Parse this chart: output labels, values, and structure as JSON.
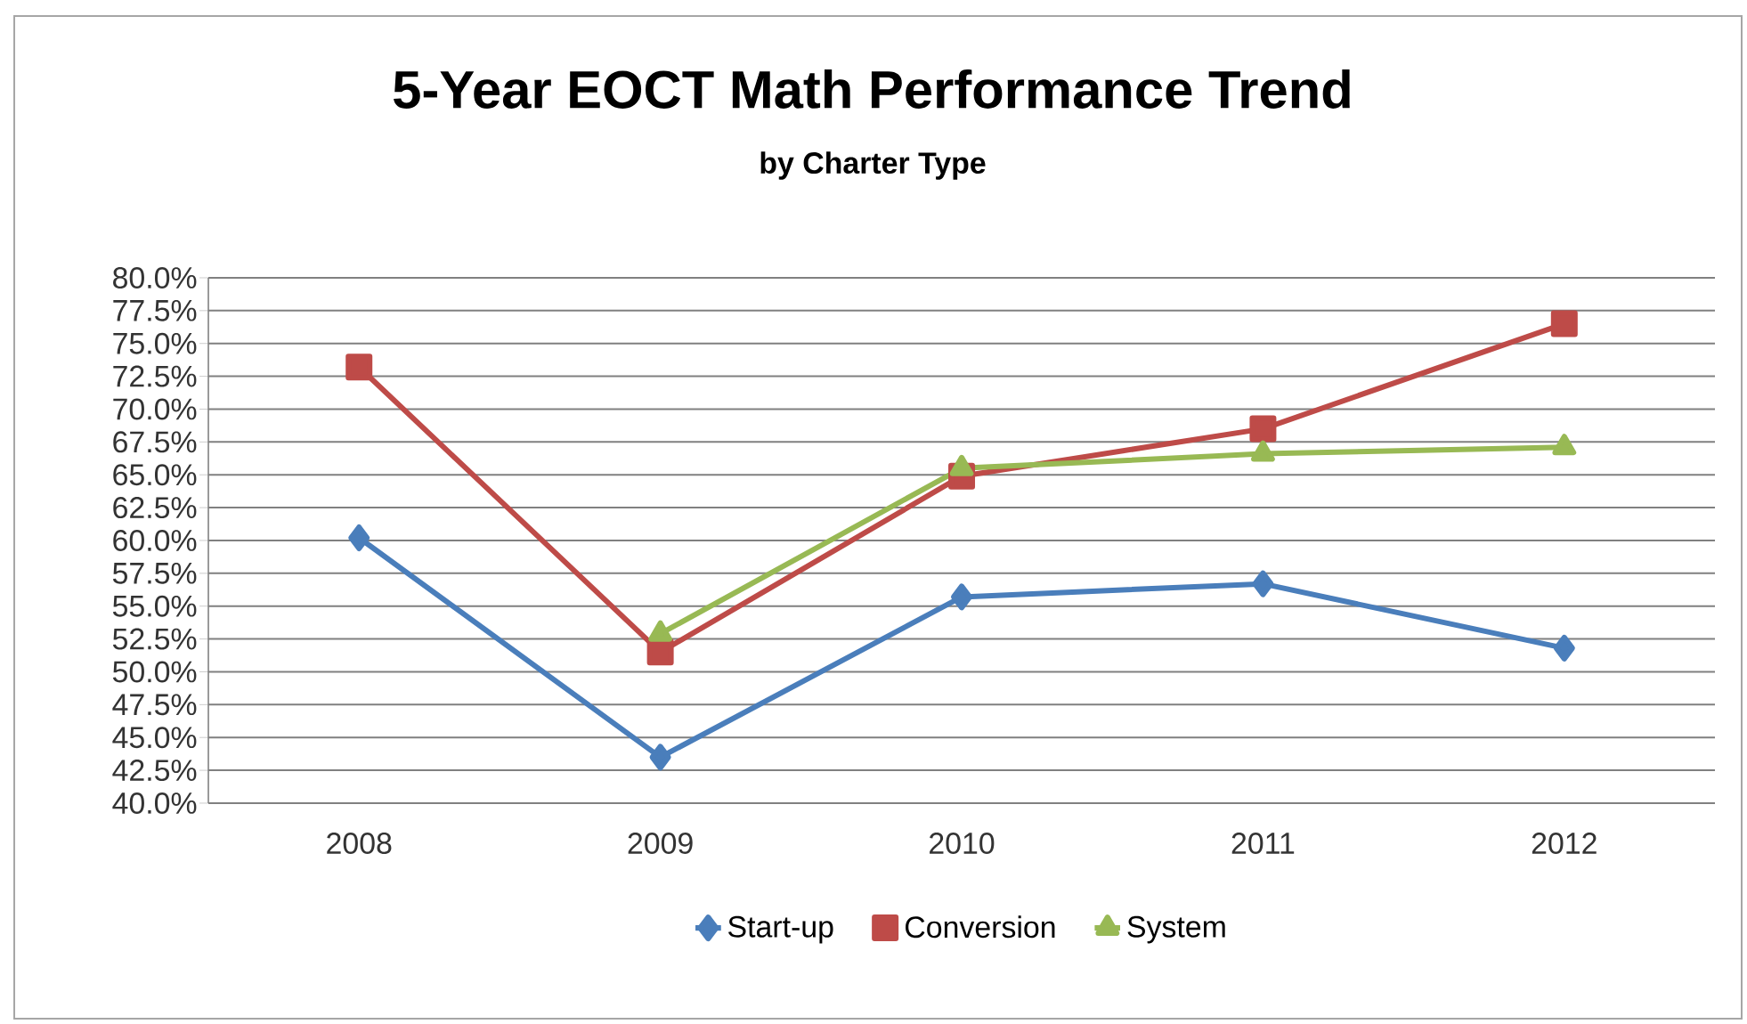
{
  "chart_data": {
    "type": "line",
    "title": "5-Year EOCT Math Performance Trend",
    "subtitle": "by Charter Type",
    "categories": [
      "2008",
      "2009",
      "2010",
      "2011",
      "2012"
    ],
    "series": [
      {
        "name": "Start-up",
        "color": "#4a7ebb",
        "marker": "diamond",
        "values": [
          60.2,
          43.5,
          55.7,
          56.7,
          51.8
        ]
      },
      {
        "name": "Conversion",
        "color": "#be4b48",
        "marker": "square",
        "values": [
          73.2,
          51.5,
          64.9,
          68.5,
          76.5
        ]
      },
      {
        "name": "System",
        "color": "#98b954",
        "marker": "triangle",
        "values": [
          null,
          52.9,
          65.5,
          66.6,
          67.1
        ]
      }
    ],
    "ylim": [
      40,
      80
    ],
    "yticks": [
      {
        "value": 40,
        "label": "40.0%"
      },
      {
        "value": 42.5,
        "label": "42.5%"
      },
      {
        "value": 45,
        "label": "45.0%"
      },
      {
        "value": 47.5,
        "label": "47.5%"
      },
      {
        "value": 50,
        "label": "50.0%"
      },
      {
        "value": 52.5,
        "label": "52.5%"
      },
      {
        "value": 55,
        "label": "55.0%"
      },
      {
        "value": 57.5,
        "label": "57.5%"
      },
      {
        "value": 60,
        "label": "60.0%"
      },
      {
        "value": 62.5,
        "label": "62.5%"
      },
      {
        "value": 65,
        "label": "65.0%"
      },
      {
        "value": 67.5,
        "label": "67.5%"
      },
      {
        "value": 70,
        "label": "70.0%"
      },
      {
        "value": 72.5,
        "label": "72.5%"
      },
      {
        "value": 75,
        "label": "75.0%"
      },
      {
        "value": 77.5,
        "label": "77.5%"
      },
      {
        "value": 80,
        "label": "80.0%"
      }
    ],
    "grid": "y",
    "legend": "bottom"
  }
}
